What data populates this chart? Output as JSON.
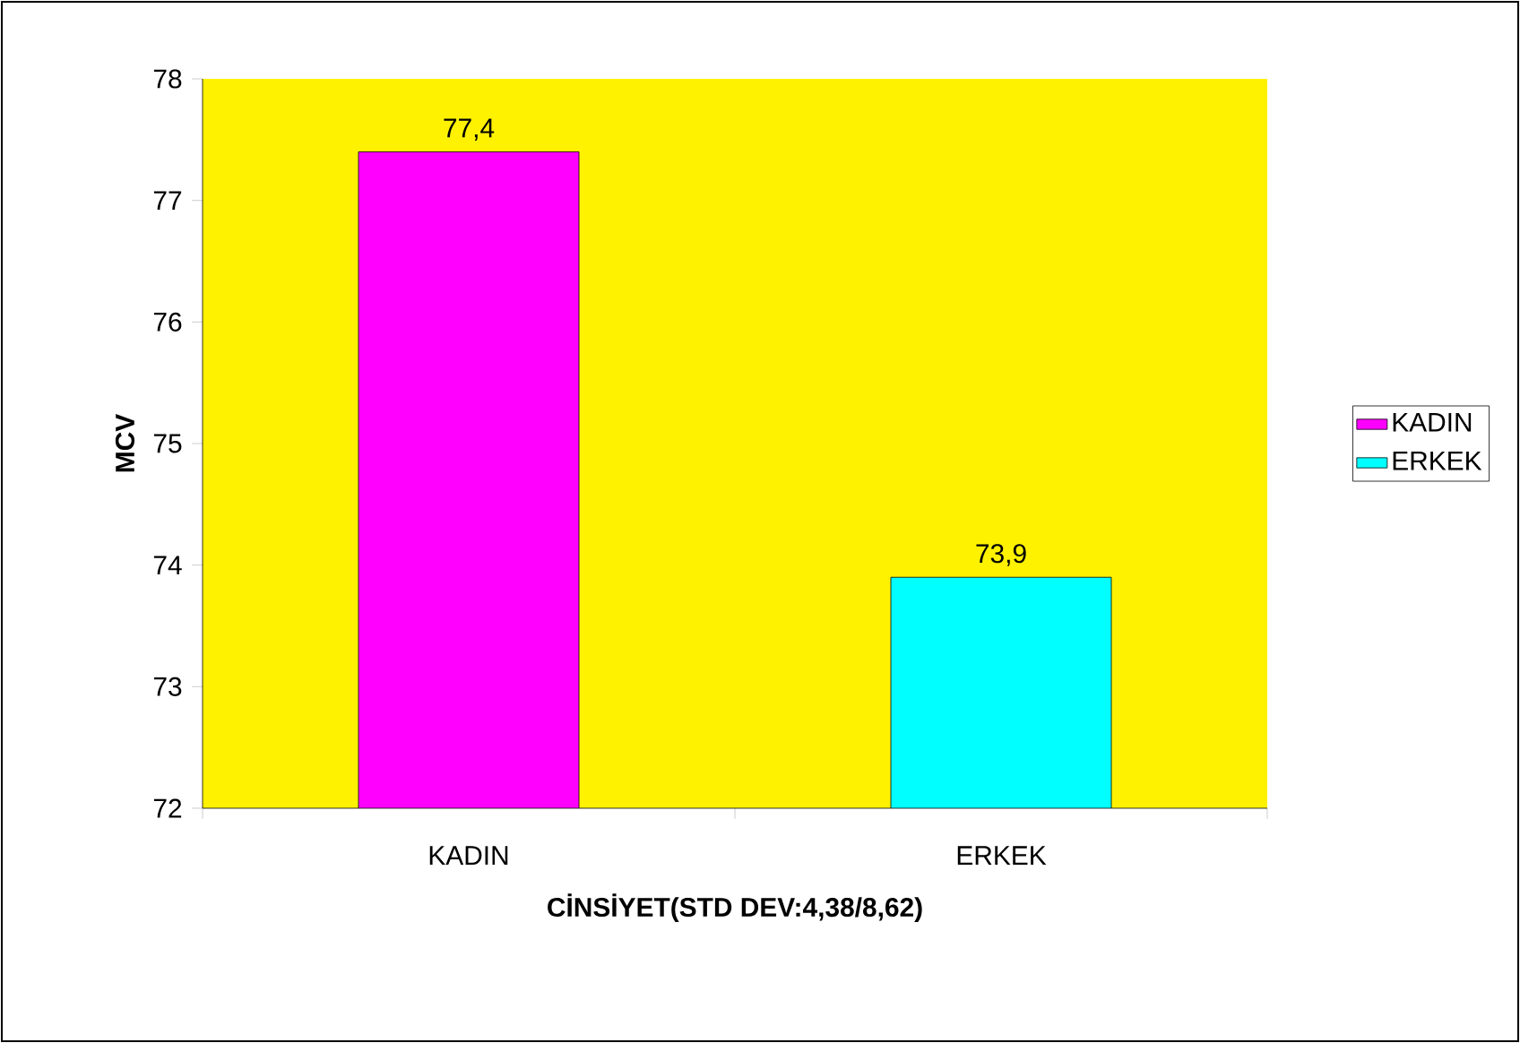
{
  "chart_data": {
    "type": "bar",
    "xlabel": "CİNSİYET(STD DEV:4,38/8,62)",
    "ylabel": "MCV",
    "categories": [
      "KADIN",
      "ERKEK"
    ],
    "series": [
      {
        "name": "KADIN",
        "color": "#ff00ff",
        "values": [
          77.4,
          null
        ]
      },
      {
        "name": "ERKEK",
        "color": "#00ffff",
        "values": [
          null,
          73.9
        ]
      }
    ],
    "value_labels": [
      "77,4",
      "73,9"
    ],
    "ylim": [
      72,
      78
    ],
    "yticks": [
      72,
      73,
      74,
      75,
      76,
      77,
      78
    ],
    "grid": false,
    "legend": "right"
  }
}
